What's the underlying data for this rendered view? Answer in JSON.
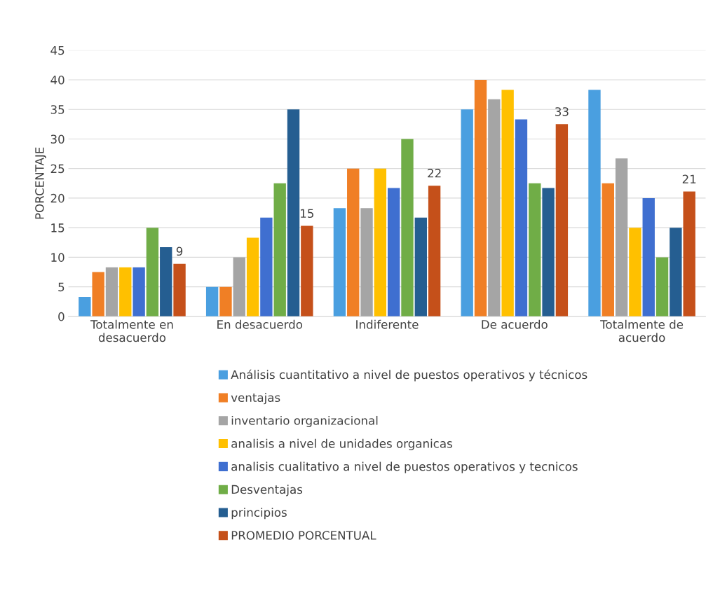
{
  "chart_data": {
    "type": "bar",
    "ylabel": "PORCENTAJE",
    "categories": [
      "Totalmente en\ndesacuerdo",
      "En desacuerdo",
      "Indiferente",
      "De acuerdo",
      "Totalmente de\nacuerdo"
    ],
    "series": [
      {
        "name": "Análisis cuantitativo a nivel de puestos operativos y técnicos",
        "color": "#4a9fe0",
        "values": [
          3.3,
          5,
          18.3,
          35,
          38.3
        ]
      },
      {
        "name": "ventajas",
        "color": "#f07f25",
        "values": [
          7.5,
          5,
          25,
          40,
          22.5
        ]
      },
      {
        "name": "inventario organizacional",
        "color": "#a5a5a5",
        "values": [
          8.3,
          10,
          18.3,
          36.7,
          26.7
        ]
      },
      {
        "name": "analisis a nivel de unidades organicas",
        "color": "#ffc000",
        "values": [
          8.3,
          13.3,
          25,
          38.3,
          15
        ]
      },
      {
        "name": "analisis cualitativo a nivel de puestos operativos y tecnicos",
        "color": "#3f6fd0",
        "values": [
          8.3,
          16.7,
          21.7,
          33.3,
          20
        ]
      },
      {
        "name": "Desventajas",
        "color": "#70ad47",
        "values": [
          15,
          22.5,
          30,
          22.5,
          10
        ]
      },
      {
        "name": "principios",
        "color": "#255e91",
        "values": [
          11.7,
          35,
          16.7,
          21.7,
          15
        ]
      },
      {
        "name": "PROMEDIO PORCENTUAL",
        "color": "#c5501a",
        "values": [
          8.9,
          15.3,
          22.1,
          32.5,
          21.1
        ],
        "value_labels": [
          "9",
          "15",
          "22",
          "33",
          "21"
        ]
      }
    ],
    "ylim": [
      0,
      45
    ],
    "yticks": [
      0,
      5,
      10,
      15,
      20,
      25,
      30,
      35,
      40,
      45
    ],
    "grid": "y",
    "legend": "bottom"
  }
}
